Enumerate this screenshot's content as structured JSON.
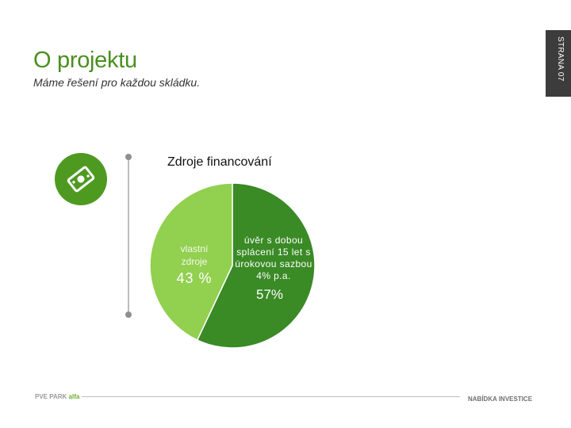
{
  "header": {
    "title": "O projektu",
    "subtitle": "Máme řešení pro každou skládku.",
    "page_tab": "STRANA 07"
  },
  "icon": {
    "name": "money-icon"
  },
  "chart_data": {
    "type": "pie",
    "title": "Zdroje financování",
    "slices": [
      {
        "label": "vlastní zdroje",
        "value": 43,
        "value_label": "43 %",
        "color": "#92d050"
      },
      {
        "label": "úvěr s dobou splácení 15 let s úrokovou sazbou 4% p.a.",
        "value": 57,
        "value_label": "57%",
        "color": "#3a8a26"
      }
    ]
  },
  "footer": {
    "left_brand": "PVE PARK",
    "left_brand_accent": "alfa",
    "right_label": "NABÍDKA INVESTICE"
  }
}
